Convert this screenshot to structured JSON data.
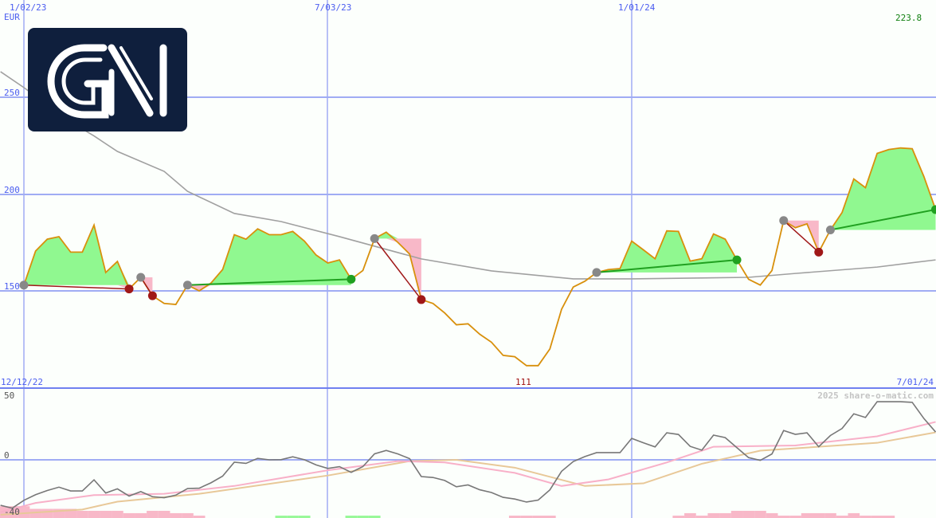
{
  "chart_data": [
    {
      "type": "line",
      "panel": "price",
      "unit_label": "EUR",
      "ylim": [
        111,
        263
      ],
      "y_ticks": [
        "250",
        "200",
        "150"
      ],
      "x_tick_labels": [
        "1/02/23",
        "7/03/23",
        "1/01/24"
      ],
      "max_label": "223.8",
      "min_label": "111",
      "range_start_label": "12/12/22",
      "range_end_label": "7/01/24",
      "grid": true,
      "weeks": [
        "2022-12-19",
        "2022-12-26",
        "2023-01-02",
        "2023-01-09",
        "2023-01-16",
        "2023-01-23",
        "2023-01-30",
        "2023-02-06",
        "2023-02-13",
        "2023-02-20",
        "2023-02-27",
        "2023-03-06",
        "2023-03-13",
        "2023-03-20",
        "2023-03-27",
        "2023-04-03",
        "2023-04-10",
        "2023-04-17",
        "2023-04-24",
        "2023-05-01",
        "2023-05-08",
        "2023-05-15",
        "2023-05-22",
        "2023-05-29",
        "2023-06-05",
        "2023-06-12",
        "2023-06-19",
        "2023-06-26",
        "2023-07-03",
        "2023-07-10",
        "2023-07-17",
        "2023-07-24",
        "2023-07-31",
        "2023-08-07",
        "2023-08-14",
        "2023-08-21",
        "2023-08-28",
        "2023-09-04",
        "2023-09-11",
        "2023-09-18",
        "2023-09-25",
        "2023-10-02",
        "2023-10-09",
        "2023-10-16",
        "2023-10-23",
        "2023-10-30",
        "2023-11-06",
        "2023-11-13",
        "2023-11-20",
        "2023-11-27",
        "2023-12-04",
        "2023-12-11",
        "2023-12-18",
        "2023-12-25",
        "2024-01-01",
        "2024-01-08",
        "2024-01-15",
        "2024-01-22",
        "2024-01-29",
        "2024-02-05",
        "2024-02-12",
        "2024-02-19",
        "2024-02-26",
        "2024-03-04",
        "2024-03-11",
        "2024-03-18",
        "2024-03-25",
        "2024-04-01",
        "2024-04-08",
        "2024-04-15",
        "2024-04-22",
        "2024-04-29",
        "2024-05-06",
        "2024-05-13",
        "2024-05-20",
        "2024-05-27",
        "2024-06-03",
        "2024-06-10",
        "2024-06-17",
        "2024-06-24",
        "2024-07-01"
      ],
      "series": [
        {
          "role": "price",
          "color": "#d8900c",
          "values": [
            null,
            null,
            153,
            170.6,
            176.7,
            178,
            170,
            170,
            184,
            159.5,
            165.2,
            151,
            157,
            147.5,
            143.5,
            143,
            153,
            150,
            154,
            161,
            179,
            176.7,
            182,
            179,
            179,
            180.7,
            175.7,
            168.5,
            164.4,
            166,
            156,
            160.5,
            177,
            180.3,
            175,
            169,
            145.5,
            143.5,
            138.6,
            132.5,
            133,
            127.6,
            123.5,
            116.7,
            116,
            111.4,
            111.4,
            120,
            140.5,
            152,
            155,
            159.5,
            161,
            161.5,
            175.7,
            171.2,
            166.6,
            181,
            180.7,
            165.4,
            166.6,
            179.4,
            176.7,
            166,
            156,
            153,
            160.5,
            186.3,
            182.6,
            184.6,
            170,
            181.5,
            190.5,
            207.8,
            203.3,
            221,
            223,
            223.8,
            223.4,
            209,
            192
          ]
        },
        {
          "role": "moving-average",
          "color": "#a0a0a0",
          "points": [
            [
              "2022-12-19",
              263.2
            ],
            [
              "2023-01-02",
              255
            ],
            [
              "2023-01-30",
              237.2
            ],
            [
              "2023-02-13",
              230
            ],
            [
              "2023-02-27",
              222
            ],
            [
              "2023-03-27",
              211.7
            ],
            [
              "2023-04-10",
              201.4
            ],
            [
              "2023-05-08",
              190
            ],
            [
              "2023-06-05",
              185.8
            ],
            [
              "2023-07-10",
              178
            ],
            [
              "2023-08-28",
              166.5
            ],
            [
              "2023-10-09",
              160.3
            ],
            [
              "2023-11-27",
              156.2
            ],
            [
              "2024-01-01",
              156.2
            ],
            [
              "2024-03-11",
              157
            ],
            [
              "2024-04-08",
              159
            ],
            [
              "2024-05-27",
              162.3
            ],
            [
              "2024-07-01",
              166
            ]
          ]
        }
      ],
      "trades": [
        {
          "start": "2023-01-02",
          "end": "2023-03-06",
          "result": "loss"
        },
        {
          "start": "2023-03-13",
          "end": "2023-03-20",
          "result": "loss"
        },
        {
          "start": "2023-04-10",
          "end": "2023-07-17",
          "result": "gain"
        },
        {
          "start": "2023-07-31",
          "end": "2023-08-28",
          "result": "loss"
        },
        {
          "start": "2023-12-11",
          "end": "2024-03-04",
          "result": "gain"
        },
        {
          "start": "2024-04-01",
          "end": "2024-04-22",
          "result": "loss"
        },
        {
          "start": "2024-04-29",
          "end": "2024-07-01",
          "result": "gain"
        }
      ],
      "colors": {
        "gain_fill": "#90f890",
        "loss_fill": "#f8b8c8",
        "gain_line": "#20a020",
        "loss_line": "#a01818",
        "start_marker": "#888888",
        "grid": "#a0acf4",
        "label": "#4a5cf0",
        "max_label": "#108010",
        "min_label": "#a01010"
      }
    },
    {
      "type": "line",
      "panel": "oscillator",
      "ylim": [
        -40,
        50
      ],
      "y_ticks": [
        "50",
        "0",
        "-40"
      ],
      "watermark": "2025 share-o-matic.com",
      "series": [
        {
          "role": "oscillator",
          "color": "#777777",
          "values": [
            -34.8,
            -37,
            -31,
            -26.7,
            -23.5,
            -20.9,
            -23.8,
            -23.8,
            -15.3,
            -25.4,
            -22.2,
            -27.7,
            -24.3,
            -28.2,
            -29,
            -27,
            -22,
            -21.7,
            -17.6,
            -12.5,
            -1.8,
            -2.7,
            1.1,
            0,
            0.1,
            2.3,
            0.1,
            -3.9,
            -6.6,
            -5.2,
            -9.6,
            -5.2,
            4.6,
            7.2,
            4.5,
            0.9,
            -12.8,
            -13.5,
            -15.8,
            -20.6,
            -19.2,
            -22.9,
            -25,
            -28.7,
            -30,
            -32.3,
            -30.8,
            -23,
            -8.8,
            -1.3,
            2.5,
            5.5,
            5.5,
            5.5,
            16.4,
            13,
            9.9,
            20.7,
            19.4,
            10.3,
            7.4,
            18.9,
            17,
            9.3,
            1.7,
            -0.4,
            4.5,
            22.4,
            19.5,
            20.7,
            10,
            18.6,
            24,
            35.2,
            32.4,
            44.5,
            44.5,
            44.5,
            44,
            31.6,
            21.3
          ]
        },
        {
          "role": "signal-fast",
          "color": "#f8b0c8",
          "points": [
            [
              "2022-12-19",
              -40
            ],
            [
              "2023-01-09",
              -33
            ],
            [
              "2023-02-13",
              -27
            ],
            [
              "2023-03-27",
              -26
            ],
            [
              "2023-05-08",
              -20
            ],
            [
              "2023-07-03",
              -8
            ],
            [
              "2023-08-14",
              -1
            ],
            [
              "2023-09-11",
              -2
            ],
            [
              "2023-10-23",
              -10
            ],
            [
              "2023-11-20",
              -20
            ],
            [
              "2023-12-18",
              -15
            ],
            [
              "2024-01-22",
              -2
            ],
            [
              "2024-02-19",
              10
            ],
            [
              "2024-04-08",
              11
            ],
            [
              "2024-05-27",
              18
            ],
            [
              "2024-07-01",
              29
            ]
          ]
        },
        {
          "role": "signal-slow",
          "color": "#e8c898",
          "points": [
            [
              "2022-12-19",
              -42
            ],
            [
              "2023-02-06",
              -38
            ],
            [
              "2023-02-27",
              -32
            ],
            [
              "2023-04-17",
              -26
            ],
            [
              "2023-07-03",
              -12
            ],
            [
              "2023-08-21",
              -1
            ],
            [
              "2023-09-18",
              0
            ],
            [
              "2023-10-23",
              -6
            ],
            [
              "2023-12-04",
              -20
            ],
            [
              "2024-01-08",
              -18
            ],
            [
              "2024-02-12",
              -3
            ],
            [
              "2024-03-18",
              7
            ],
            [
              "2024-05-27",
              13
            ],
            [
              "2024-07-01",
              21
            ]
          ]
        }
      ],
      "histogram": [
        -9,
        -9,
        -9,
        -7,
        -7,
        -7,
        -7,
        -5.5,
        -5.5,
        -5.5,
        -5.5,
        -3.7,
        -3.7,
        -5.5,
        -5.5,
        -3.7,
        -3.7,
        -1.8,
        0,
        0,
        0,
        0,
        0,
        0,
        1.8,
        1.8,
        1.8,
        0,
        0,
        0,
        1.8,
        1.8,
        1.8,
        0,
        0,
        0,
        0,
        0,
        0,
        0,
        0,
        0,
        0,
        0,
        -1.8,
        -1.8,
        -1.8,
        -1.8,
        0,
        0,
        0,
        0,
        0,
        0,
        0,
        0,
        0,
        0,
        -1.8,
        -3.7,
        -1.8,
        -3.7,
        -3.7,
        -5.5,
        -5.5,
        -5.5,
        -3.7,
        -1.8,
        -1.8,
        -3.7,
        -3.7,
        -3.7,
        -1.8,
        -3.7,
        -1.8,
        -1.8,
        -1.8,
        0,
        0,
        0,
        0
      ],
      "colors": {
        "positive": "#98f898",
        "negative": "#f8b8c8"
      }
    }
  ],
  "logo": {
    "text": "GNI",
    "background": "#0f1f3d"
  }
}
